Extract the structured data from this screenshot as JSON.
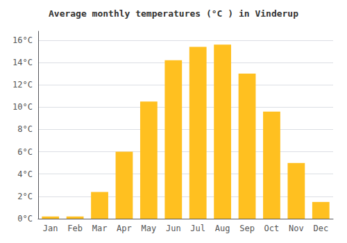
{
  "chart_data": {
    "type": "bar",
    "title": "Average monthly temperatures (°C ) in Vinderup",
    "categories": [
      "Jan",
      "Feb",
      "Mar",
      "Apr",
      "May",
      "Jun",
      "Jul",
      "Aug",
      "Sep",
      "Oct",
      "Nov",
      "Dec"
    ],
    "values": [
      0.2,
      0.2,
      2.4,
      6.0,
      10.5,
      14.2,
      15.4,
      15.6,
      13.0,
      9.6,
      5.0,
      1.5
    ],
    "color": "#FFC020",
    "ylim": [
      0,
      16.8
    ],
    "yticks": [
      {
        "value": 0,
        "label": "0°C"
      },
      {
        "value": 2,
        "label": "2°C"
      },
      {
        "value": 4,
        "label": "4°C"
      },
      {
        "value": 6,
        "label": "6°C"
      },
      {
        "value": 8,
        "label": "8°C"
      },
      {
        "value": 10,
        "label": "10°C"
      },
      {
        "value": 12,
        "label": "12°C"
      },
      {
        "value": 14,
        "label": "14°C"
      },
      {
        "value": 16,
        "label": "16°C"
      }
    ],
    "grid": true
  }
}
